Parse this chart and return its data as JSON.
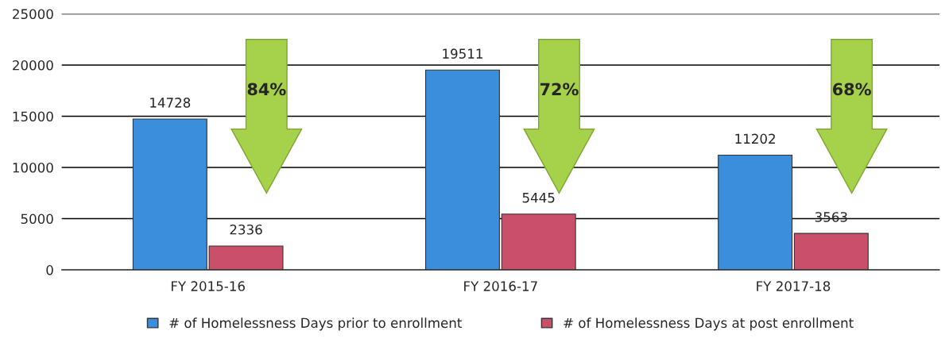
{
  "chart_data": {
    "type": "bar",
    "categories": [
      "FY 2015-16",
      "FY 2016-17",
      "FY 2017-18"
    ],
    "series": [
      {
        "name": "# of Homelessness Days prior to enrollment",
        "color": "#3b8edb",
        "values": [
          14728,
          19511,
          11202
        ]
      },
      {
        "name": "# of Homelessness Days at post enrollment",
        "color": "#c9506a",
        "values": [
          2336,
          5445,
          3563
        ]
      }
    ],
    "ylim": [
      0,
      25000
    ],
    "yticks": [
      0,
      5000,
      10000,
      15000,
      20000,
      25000
    ],
    "grid": "y",
    "legend": "bottom",
    "data_labels": true,
    "annotations": [
      "84%",
      "72%",
      "68%"
    ]
  }
}
